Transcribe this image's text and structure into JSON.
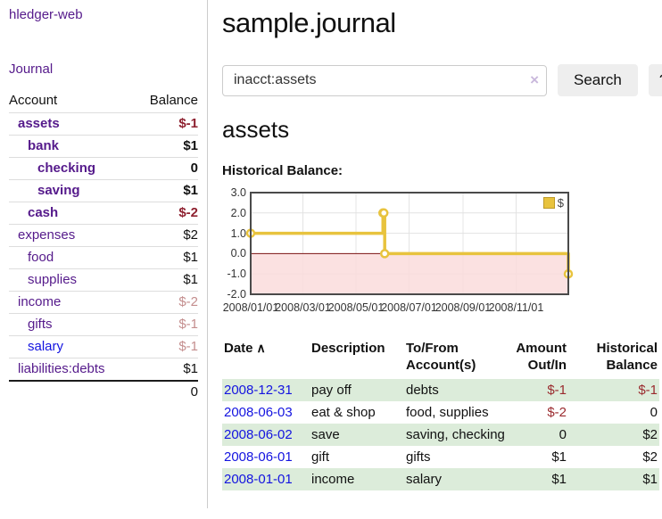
{
  "colors": {
    "visited_link_purple": "#551A8B",
    "unvisited_link_blue": "#1414E0",
    "negative_strong": "#8E2130",
    "negative_soft": "#C48E8E",
    "register_negative": "#9A2A2E",
    "row_shade_green": "#DCECDA",
    "chart_line_gold": "#E8C33E",
    "chart_negative_region_pink": "#FADCDC",
    "chart_zero_line_red": "#7A1212",
    "chart_border_gray": "#4A4A4A"
  },
  "sidebar": {
    "app_title": "hledger-web",
    "journal_link": "Journal",
    "accounts_header": {
      "account": "Account",
      "balance": "Balance"
    },
    "accounts": [
      {
        "name": "assets",
        "balance": "$-1"
      },
      {
        "name": "bank",
        "balance": "$1"
      },
      {
        "name": "checking",
        "balance": "0"
      },
      {
        "name": "saving",
        "balance": "$1"
      },
      {
        "name": "cash",
        "balance": "$-2"
      },
      {
        "name": "expenses",
        "balance": "$2"
      },
      {
        "name": "food",
        "balance": "$1"
      },
      {
        "name": "supplies",
        "balance": "$1"
      },
      {
        "name": "income",
        "balance": "$-2"
      },
      {
        "name": "gifts",
        "balance": "$-1"
      },
      {
        "name": "salary",
        "balance": "$-1"
      },
      {
        "name": "liabilities:debts",
        "balance": "$1"
      }
    ],
    "total": "0"
  },
  "main": {
    "title": "sample.journal",
    "search": {
      "value": "inacct:assets",
      "clear_icon": "×",
      "button": "Search",
      "help_button": "?"
    },
    "account_heading": "assets",
    "chart_label": "Historical Balance:"
  },
  "chart_data": {
    "type": "line",
    "step": true,
    "title": "Historical Balance:",
    "series": [
      {
        "name": "$",
        "points": [
          [
            "2008-01-01",
            1
          ],
          [
            "2008-06-01",
            2
          ],
          [
            "2008-06-02",
            2
          ],
          [
            "2008-06-03",
            0
          ],
          [
            "2008-12-31",
            -1
          ]
        ]
      }
    ],
    "x_range": [
      "2008-01-01",
      "2008-12-31"
    ],
    "ylim": [
      -2.0,
      3.0
    ],
    "y_ticks": [
      "3.0",
      "2.0",
      "1.0",
      "0.0",
      "-1.0",
      "-2.0"
    ],
    "x_ticks": [
      "2008/01/01",
      "2008/03/01",
      "2008/05/01",
      "2008/07/01",
      "2008/09/01",
      "2008/11/01"
    ],
    "legend": {
      "label": "$",
      "position": "top-right"
    },
    "grid": true,
    "negative_region_highlight": true
  },
  "register": {
    "headers": {
      "date": "Date",
      "sort_icon": "∧",
      "description": "Description",
      "accounts_line1": "To/From",
      "accounts_line2": "Account(s)",
      "amount_line1": "Amount",
      "amount_line2": "Out/In",
      "balance_line1": "Historical",
      "balance_line2": "Balance"
    },
    "rows": [
      {
        "date": "2008-12-31",
        "description": "pay off",
        "accounts": "debts",
        "amount": "$-1",
        "balance": "$-1"
      },
      {
        "date": "2008-06-03",
        "description": "eat & shop",
        "accounts": "food, supplies",
        "amount": "$-2",
        "balance": "0"
      },
      {
        "date": "2008-06-02",
        "description": "save",
        "accounts": "saving, checking",
        "amount": "0",
        "balance": "$2"
      },
      {
        "date": "2008-06-01",
        "description": "gift",
        "accounts": "gifts",
        "amount": "$1",
        "balance": "$2"
      },
      {
        "date": "2008-01-01",
        "description": "income",
        "accounts": "salary",
        "amount": "$1",
        "balance": "$1"
      }
    ]
  }
}
